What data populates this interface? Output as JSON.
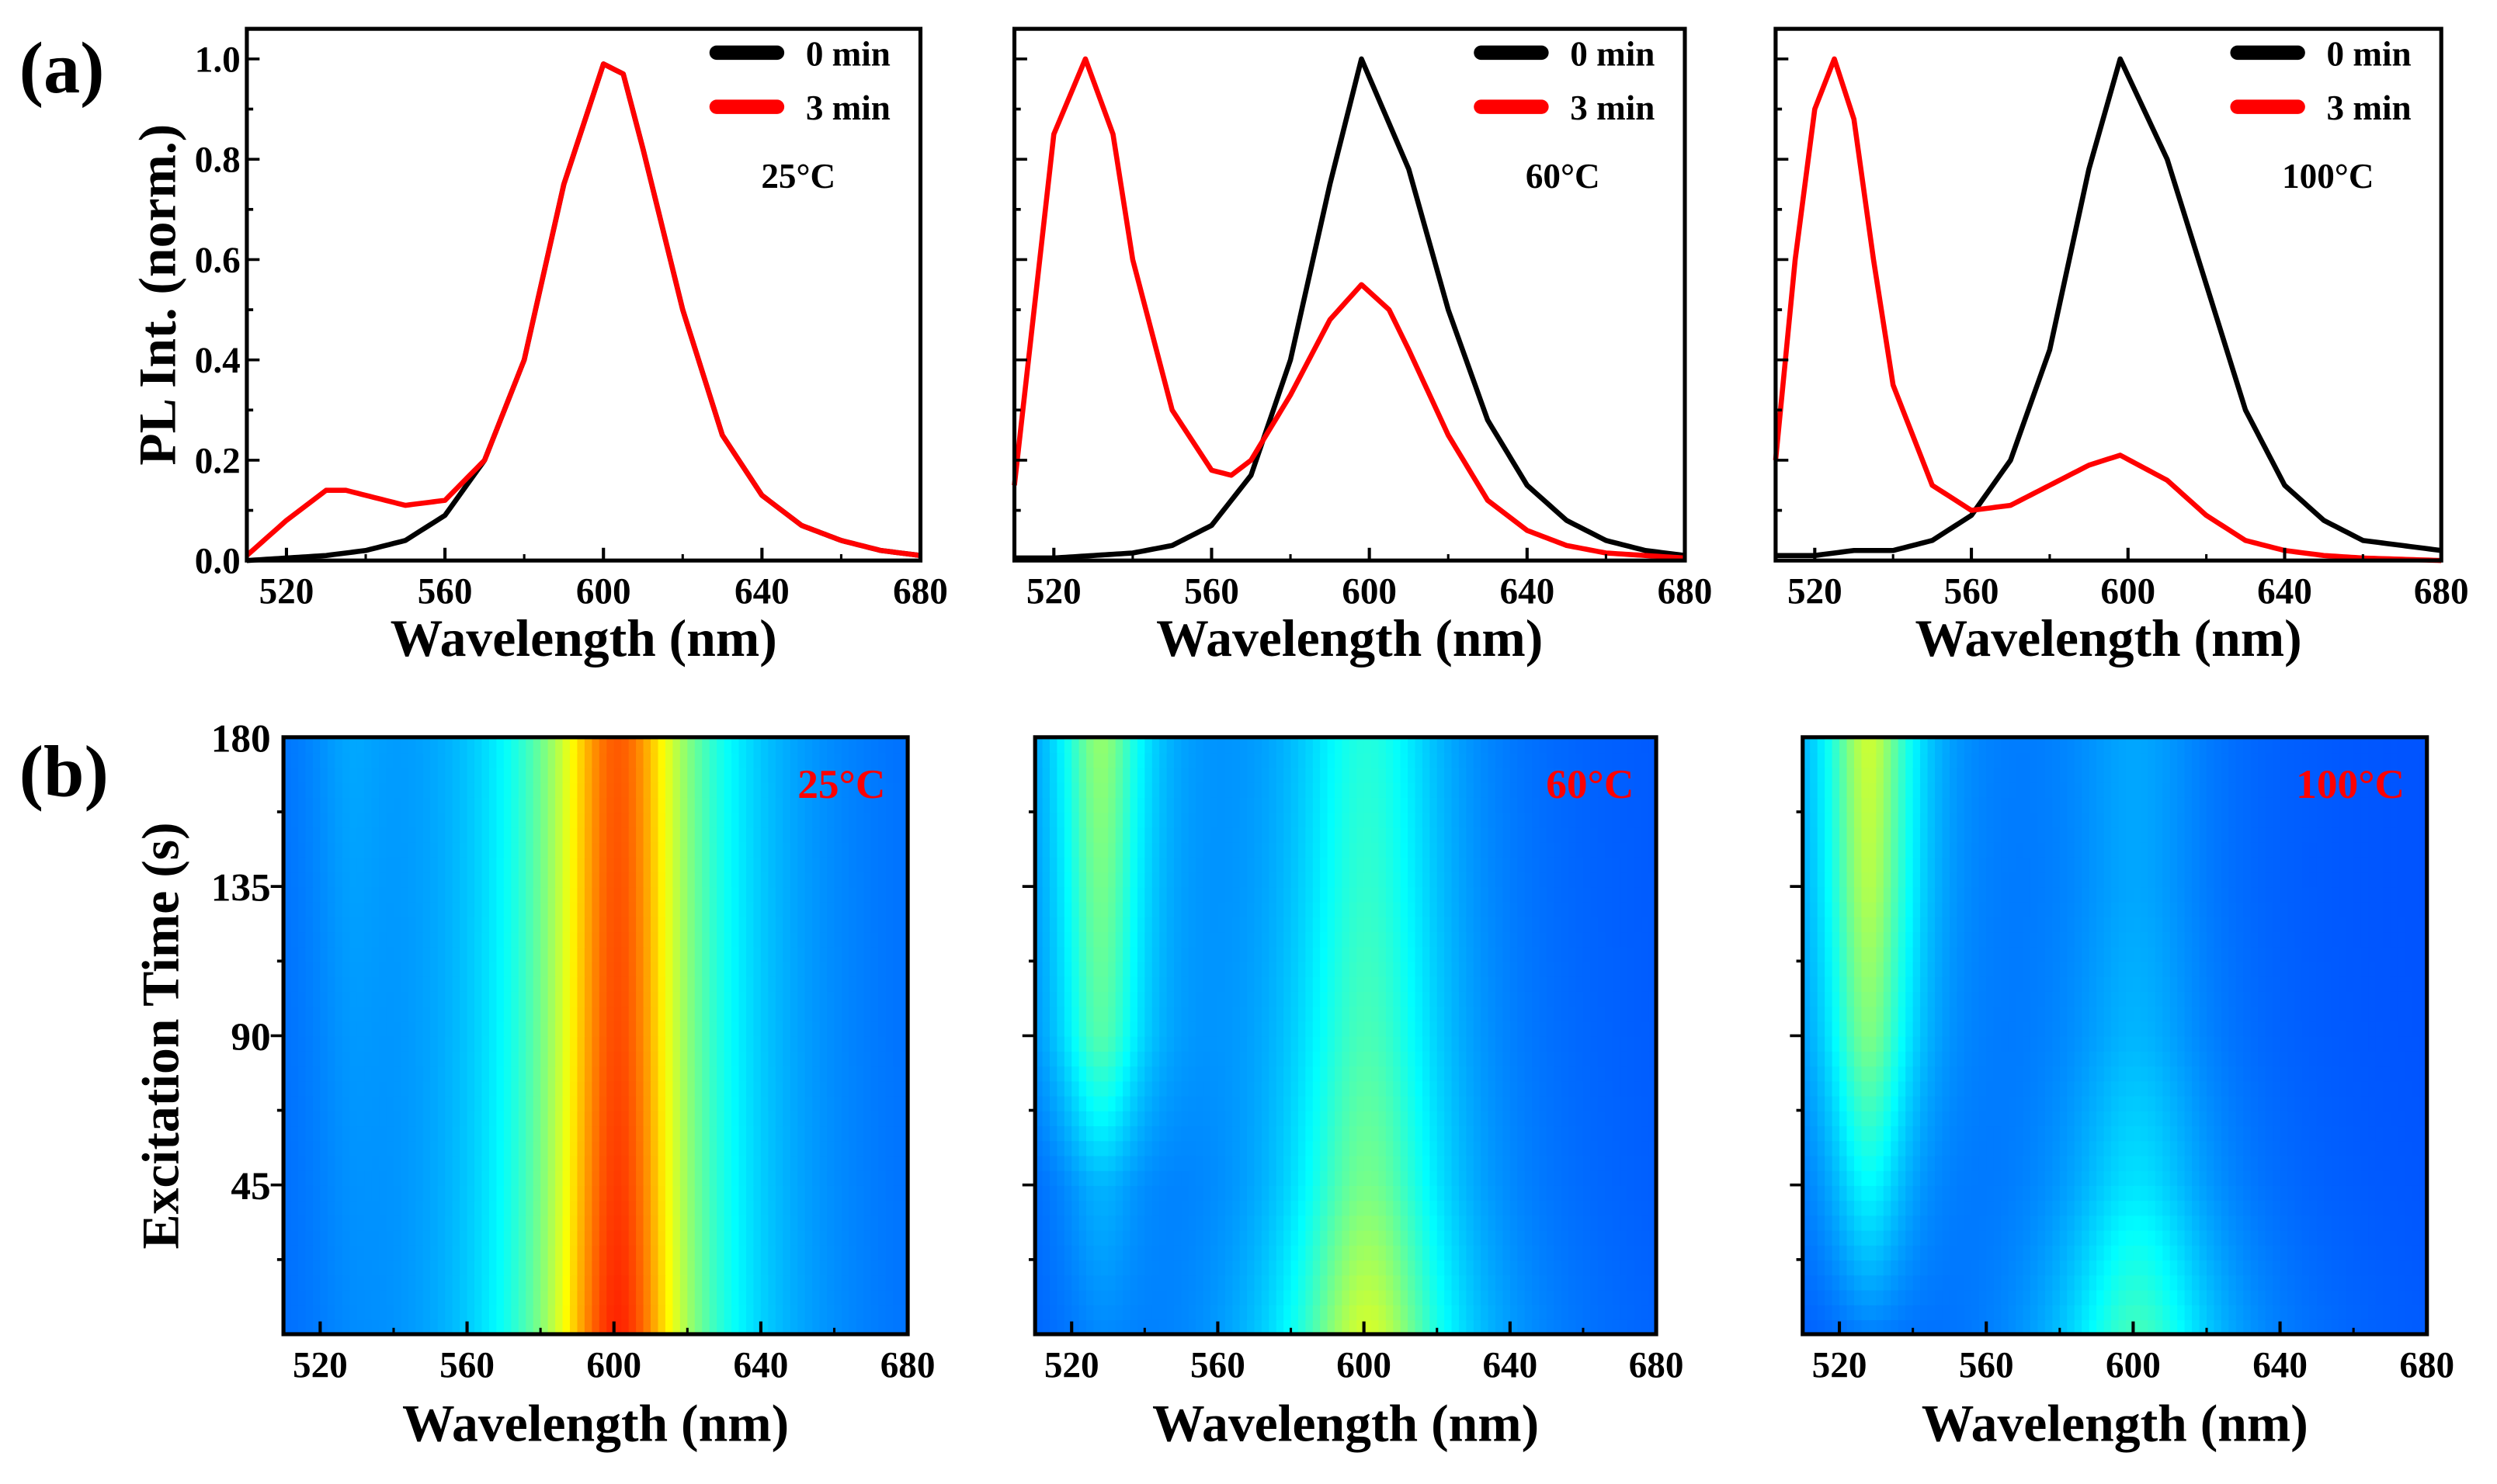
{
  "panel_labels": {
    "a": "(a)",
    "b": "(b)"
  },
  "chart_data": [
    {
      "type": "line",
      "title": "25°C",
      "xlabel": "Wavelength (nm)",
      "ylabel": "PL Int. (norm.)",
      "xlim": [
        510,
        680
      ],
      "ylim": [
        0,
        1.06
      ],
      "xticks": [
        "520",
        "560",
        "600",
        "640",
        "680"
      ],
      "yticks": [
        "0.0",
        "0.2",
        "0.4",
        "0.6",
        "0.8",
        "1.0"
      ],
      "legend": "top-right",
      "series": [
        {
          "name": "0 min",
          "color": "#000000",
          "x": [
            510,
            520,
            530,
            540,
            550,
            560,
            570,
            580,
            590,
            600,
            605,
            610,
            620,
            630,
            640,
            650,
            660,
            670,
            680
          ],
          "y": [
            0,
            0.005,
            0.01,
            0.02,
            0.04,
            0.09,
            0.2,
            0.4,
            0.75,
            0.99,
            0.97,
            0.82,
            0.5,
            0.25,
            0.13,
            0.07,
            0.04,
            0.02,
            0.01
          ]
        },
        {
          "name": "3 min",
          "color": "#ff0000",
          "x": [
            510,
            520,
            530,
            535,
            540,
            550,
            560,
            570,
            580,
            590,
            600,
            605,
            610,
            620,
            630,
            640,
            650,
            660,
            670,
            680
          ],
          "y": [
            0.01,
            0.08,
            0.14,
            0.14,
            0.13,
            0.11,
            0.12,
            0.2,
            0.4,
            0.75,
            0.99,
            0.97,
            0.82,
            0.5,
            0.25,
            0.13,
            0.07,
            0.04,
            0.02,
            0.01
          ]
        }
      ]
    },
    {
      "type": "line",
      "title": "60°C",
      "xlabel": "Wavelength (nm)",
      "ylabel": "",
      "xlim": [
        510,
        680
      ],
      "ylim": [
        0,
        1.06
      ],
      "xticks": [
        "520",
        "560",
        "600",
        "640",
        "680"
      ],
      "yticks": [],
      "legend": "top-right",
      "series": [
        {
          "name": "0 min",
          "color": "#000000",
          "x": [
            510,
            520,
            530,
            540,
            550,
            560,
            570,
            580,
            590,
            598,
            610,
            620,
            630,
            640,
            650,
            660,
            670,
            680
          ],
          "y": [
            0.005,
            0.005,
            0.01,
            0.015,
            0.03,
            0.07,
            0.17,
            0.4,
            0.75,
            1.0,
            0.78,
            0.5,
            0.28,
            0.15,
            0.08,
            0.04,
            0.02,
            0.01
          ]
        },
        {
          "name": "3 min",
          "color": "#ff0000",
          "x": [
            510,
            515,
            520,
            528,
            535,
            540,
            550,
            560,
            565,
            570,
            580,
            590,
            598,
            605,
            610,
            620,
            630,
            640,
            650,
            660,
            670,
            680
          ],
          "y": [
            0.15,
            0.5,
            0.85,
            1.0,
            0.85,
            0.6,
            0.3,
            0.18,
            0.17,
            0.2,
            0.33,
            0.48,
            0.55,
            0.5,
            0.42,
            0.25,
            0.12,
            0.06,
            0.03,
            0.015,
            0.01,
            0.005
          ]
        }
      ]
    },
    {
      "type": "line",
      "title": "100°C",
      "xlabel": "Wavelength (nm)",
      "ylabel": "",
      "xlim": [
        510,
        680
      ],
      "ylim": [
        0,
        1.06
      ],
      "xticks": [
        "520",
        "560",
        "600",
        "640",
        "680"
      ],
      "yticks": [],
      "legend": "top-right",
      "series": [
        {
          "name": "0 min",
          "color": "#000000",
          "x": [
            510,
            520,
            530,
            540,
            550,
            560,
            570,
            580,
            590,
            598,
            610,
            620,
            630,
            640,
            650,
            660,
            670,
            680
          ],
          "y": [
            0.01,
            0.01,
            0.02,
            0.02,
            0.04,
            0.09,
            0.2,
            0.42,
            0.78,
            1.0,
            0.8,
            0.55,
            0.3,
            0.15,
            0.08,
            0.04,
            0.03,
            0.02
          ]
        },
        {
          "name": "3 min",
          "color": "#ff0000",
          "x": [
            510,
            515,
            520,
            525,
            530,
            535,
            540,
            550,
            560,
            570,
            580,
            590,
            598,
            610,
            620,
            630,
            640,
            650,
            660,
            680
          ],
          "y": [
            0.2,
            0.6,
            0.9,
            1.0,
            0.88,
            0.6,
            0.35,
            0.15,
            0.1,
            0.11,
            0.15,
            0.19,
            0.21,
            0.16,
            0.09,
            0.04,
            0.02,
            0.01,
            0.005,
            0
          ]
        }
      ]
    },
    {
      "type": "heatmap",
      "title": "25°C",
      "title_color": "#ff0000",
      "xlabel": "Wavelength (nm)",
      "ylabel": "Excitation Time (s)",
      "xlim": [
        510,
        680
      ],
      "ylim": [
        0,
        180
      ],
      "xticks": [
        "520",
        "560",
        "600",
        "640",
        "680"
      ],
      "yticks": [
        "45",
        "90",
        "135",
        "180"
      ],
      "times": [
        0,
        45,
        90,
        135,
        180
      ],
      "peak_600_amplitude": [
        0.8,
        0.77,
        0.75,
        0.74,
        0.73
      ],
      "peak_530_amplitude": [
        0.02,
        0.03,
        0.04,
        0.05,
        0.06
      ]
    },
    {
      "type": "heatmap",
      "title": "60°C",
      "title_color": "#ff0000",
      "xlabel": "Wavelength (nm)",
      "ylabel": "",
      "xlim": [
        510,
        680
      ],
      "ylim": [
        0,
        180
      ],
      "xticks": [
        "520",
        "560",
        "600",
        "640",
        "680"
      ],
      "yticks": [],
      "times": [
        0,
        45,
        90,
        135,
        180
      ],
      "peak_600_amplitude": [
        0.48,
        0.36,
        0.3,
        0.27,
        0.25
      ],
      "peak_530_amplitude": [
        0.04,
        0.1,
        0.3,
        0.34,
        0.38
      ]
    },
    {
      "type": "heatmap",
      "title": "100°C",
      "title_color": "#ff0000",
      "xlabel": "Wavelength (nm)",
      "ylabel": "",
      "xlim": [
        510,
        680
      ],
      "ylim": [
        0,
        180
      ],
      "xticks": [
        "520",
        "560",
        "600",
        "640",
        "680"
      ],
      "yticks": [],
      "times": [
        0,
        45,
        90,
        135,
        180
      ],
      "peak_600_amplitude": [
        0.3,
        0.18,
        0.12,
        0.1,
        0.1
      ],
      "peak_530_amplitude": [
        0.04,
        0.2,
        0.36,
        0.43,
        0.46
      ]
    }
  ]
}
